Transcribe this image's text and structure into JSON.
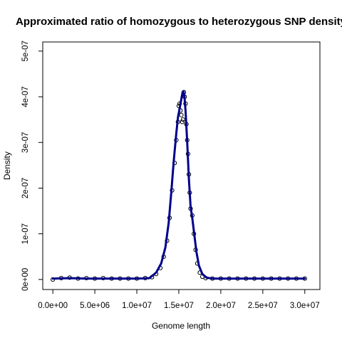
{
  "chart_data": {
    "type": "scatter",
    "title": "Approximated ratio of homozygous to heterozygous SNP density",
    "xlabel": "Genome length",
    "ylabel": "Density",
    "xlim": [
      -1200000,
      31800000
    ],
    "ylim": [
      -2.2e-08,
      5.2e-07
    ],
    "x_ticks": [
      {
        "value": 0,
        "label": "0.0e+00"
      },
      {
        "value": 5000000,
        "label": "5.0e+06"
      },
      {
        "value": 10000000,
        "label": "1.0e+07"
      },
      {
        "value": 15000000,
        "label": "1.5e+07"
      },
      {
        "value": 20000000,
        "label": "2.0e+07"
      },
      {
        "value": 25000000,
        "label": "2.5e+07"
      },
      {
        "value": 30000000,
        "label": "3.0e+07"
      }
    ],
    "y_ticks": [
      {
        "value": 0,
        "label": "0e+00"
      },
      {
        "value": 1e-07,
        "label": "1e-07"
      },
      {
        "value": 2e-07,
        "label": "2e-07"
      },
      {
        "value": 3e-07,
        "label": "3e-07"
      },
      {
        "value": 4e-07,
        "label": "4e-07"
      },
      {
        "value": 5e-07,
        "label": "5e-07"
      }
    ],
    "grid": false,
    "series": [
      {
        "kind": "points",
        "marker": "open-circle",
        "color": "#000000",
        "x": [
          0,
          1000000,
          2000000,
          3000000,
          4000000,
          5000000,
          6000000,
          7000000,
          8000000,
          9000000,
          10000000,
          11000000,
          11800000,
          12300000,
          12800000,
          13200000,
          13600000,
          13900000,
          14200000,
          14500000,
          14700000,
          14900000,
          15000000,
          15100000,
          15200000,
          15300000,
          15400000,
          15500000,
          15600000,
          15700000,
          15800000,
          15900000,
          16000000,
          16100000,
          16200000,
          16300000,
          16400000,
          16600000,
          16800000,
          17000000,
          17200000,
          17500000,
          17800000,
          18200000,
          19000000,
          20000000,
          21000000,
          22000000,
          23000000,
          24000000,
          25000000,
          26000000,
          27000000,
          28000000,
          29000000,
          30000000
        ],
        "y": [
          0,
          3e-09,
          4e-09,
          2e-09,
          3e-09,
          2e-09,
          3e-09,
          2e-09,
          2e-09,
          2e-09,
          2e-09,
          3e-09,
          5e-09,
          1.2e-08,
          2.5e-08,
          5e-08,
          8.5e-08,
          1.35e-07,
          1.95e-07,
          2.55e-07,
          3.05e-07,
          3.45e-07,
          3.8e-07,
          3.85e-07,
          3.7e-07,
          3.6e-07,
          3.45e-07,
          3.5e-07,
          4.1e-07,
          4e-07,
          3.85e-07,
          3.4e-07,
          3.05e-07,
          2.75e-07,
          2.3e-07,
          1.9e-07,
          1.55e-07,
          1.4e-07,
          1e-07,
          6.5e-08,
          3.5e-08,
          1.5e-08,
          6e-09,
          3e-09,
          2e-09,
          2e-09,
          2e-09,
          2e-09,
          2e-09,
          2e-09,
          2e-09,
          2e-09,
          2e-09,
          2e-09,
          2e-09,
          2e-09
        ]
      },
      {
        "kind": "line",
        "color": "#00008B",
        "x": [
          0,
          2000000,
          4000000,
          6000000,
          8000000,
          10000000,
          11500000,
          12300000,
          12900000,
          13400000,
          13800000,
          14100000,
          14400000,
          14700000,
          14900000,
          15100000,
          15300000,
          15450000,
          15550000,
          15650000,
          15800000,
          16000000,
          16200000,
          16400000,
          16600000,
          16800000,
          17100000,
          17400000,
          17800000,
          18300000,
          19000000,
          20000000,
          22000000,
          24000000,
          26000000,
          28000000,
          30000000
        ],
        "y": [
          2e-09,
          3e-09,
          2e-09,
          2e-09,
          2e-09,
          2e-09,
          3e-09,
          1.5e-08,
          3.5e-08,
          7e-08,
          1.25e-07,
          1.9e-07,
          2.6e-07,
          3.2e-07,
          3.55e-07,
          3.75e-07,
          3.95e-07,
          4.1e-07,
          4.12e-07,
          4.05e-07,
          3.7e-07,
          3e-07,
          2.2e-07,
          1.6e-07,
          1.35e-07,
          1.05e-07,
          6e-08,
          3e-08,
          1.2e-08,
          4e-09,
          2e-09,
          2e-09,
          2e-09,
          2e-09,
          2e-09,
          2e-09,
          2e-09
        ]
      }
    ]
  }
}
